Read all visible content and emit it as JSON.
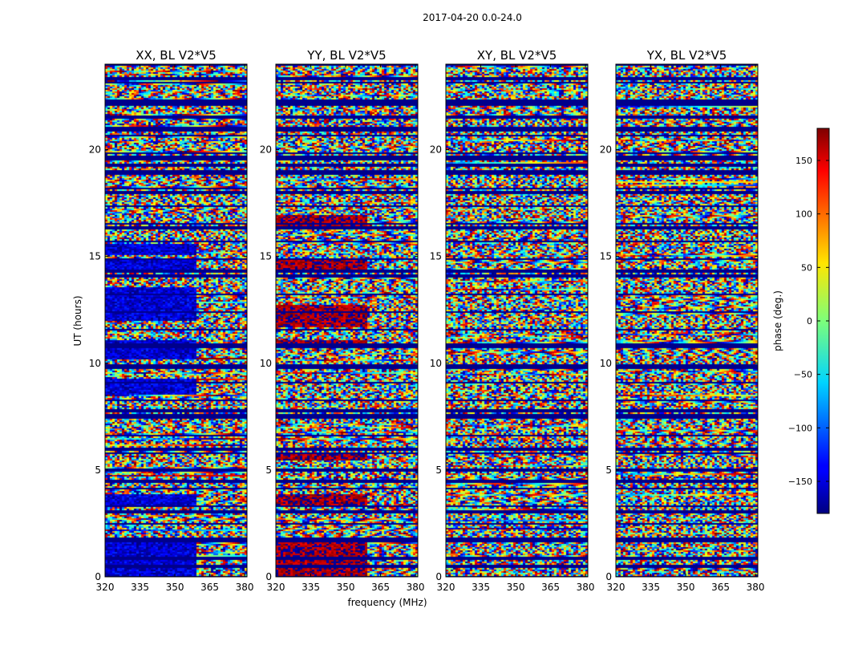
{
  "chart_data": {
    "type": "heatmap",
    "suptitle": "2017-04-20 0.0-24.0",
    "xlabel": "frequency (MHz)",
    "ylabel": "UT (hours)",
    "xlim": [
      320,
      381
    ],
    "ylim": [
      0,
      24
    ],
    "xticks": [
      320,
      335,
      350,
      365,
      380
    ],
    "yticks": [
      0,
      5,
      10,
      15,
      20
    ],
    "colormap": "jet",
    "colorbar": {
      "label": "phase (deg.)",
      "range": [
        -180,
        180
      ],
      "ticks": [
        150,
        100,
        50,
        0,
        -50,
        -100,
        -150
      ],
      "tick_labels": [
        "150",
        "100",
        "50",
        "0",
        "−50",
        "−100",
        "−150"
      ]
    },
    "panels": [
      {
        "title": "XX, BL V2*V5",
        "bias": -150,
        "coherent_bands": [
          [
            0.1,
            1.7
          ],
          [
            3.4,
            3.9
          ],
          [
            8.6,
            9.3
          ],
          [
            10.2,
            11.1
          ],
          [
            12.0,
            13.6
          ],
          [
            14.4,
            14.9
          ],
          [
            15.1,
            15.6
          ]
        ]
      },
      {
        "title": "YY, BL V2*V5",
        "bias": 170,
        "coherent_bands": [
          [
            0.1,
            1.7
          ],
          [
            3.4,
            3.9
          ],
          [
            5.5,
            5.8
          ],
          [
            10.8,
            11.1
          ],
          [
            11.7,
            12.8
          ],
          [
            14.4,
            14.9
          ],
          [
            16.4,
            17.0
          ]
        ]
      },
      {
        "title": "XY, BL V2*V5",
        "bias": 0,
        "coherent_bands": []
      },
      {
        "title": "YX, BL V2*V5",
        "bias": 0,
        "coherent_bands": []
      }
    ],
    "flagged_hours": [
      0.55,
      0.9,
      1.8,
      3.1,
      4.5,
      5.05,
      6.0,
      7.55,
      7.8,
      9.85,
      10.9,
      14.1,
      14.35,
      16.35,
      18.05,
      18.9,
      19.3,
      19.65,
      21.0,
      21.55,
      22.2,
      23.35
    ]
  },
  "colors": {
    "flagged": "#00008b",
    "axes": "#000000",
    "background": "#ffffff"
  }
}
